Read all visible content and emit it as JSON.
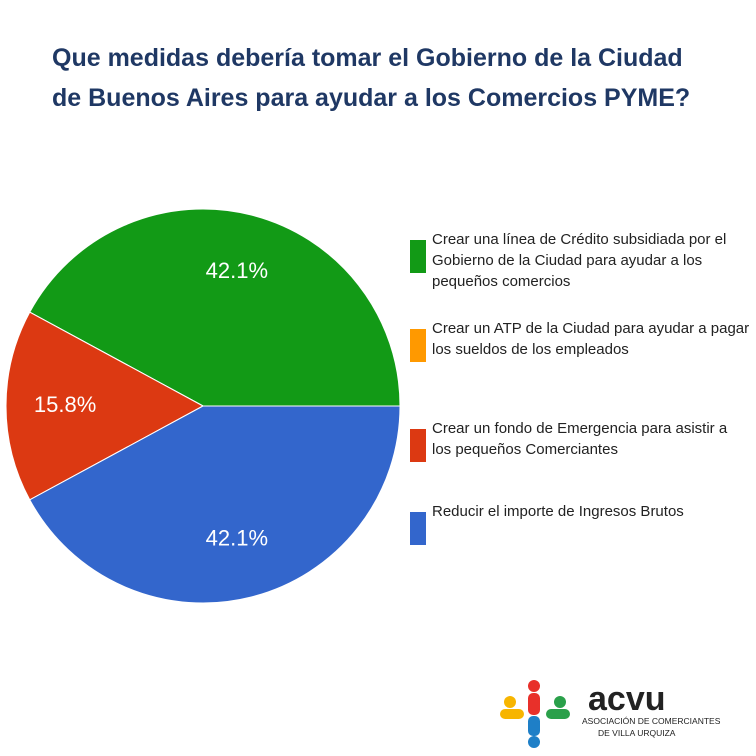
{
  "chart_data": {
    "type": "pie",
    "title": "Que medidas debería tomar el Gobierno de la Ciudad de Buenos Aires para ayudar a los Comercios PYME?",
    "categories": [
      "Crear una línea de Crédito subsidiada por el Gobierno de la Ciudad para ayudar a los pequeños comercios",
      "Crear un ATP de la Ciudad para ayudar a pagar los sueldos de los empleados",
      "Crear un fondo de Emergencia para asistir a los pequeños Comerciantes",
      "Reducir el importe de  Ingresos Brutos"
    ],
    "values": [
      42.1,
      0,
      15.8,
      42.1
    ],
    "value_labels": [
      "42.1%",
      null,
      "15.8%",
      "42.1%"
    ],
    "colors": [
      "#129a16",
      "#ff9900",
      "#dc3912",
      "#3366cc"
    ],
    "legend": "right"
  },
  "logo": {
    "name": "acvu",
    "line1": "ASOCIACIÓN DE COMERCIANTES",
    "line2": "DE VILLA URQUIZA"
  }
}
